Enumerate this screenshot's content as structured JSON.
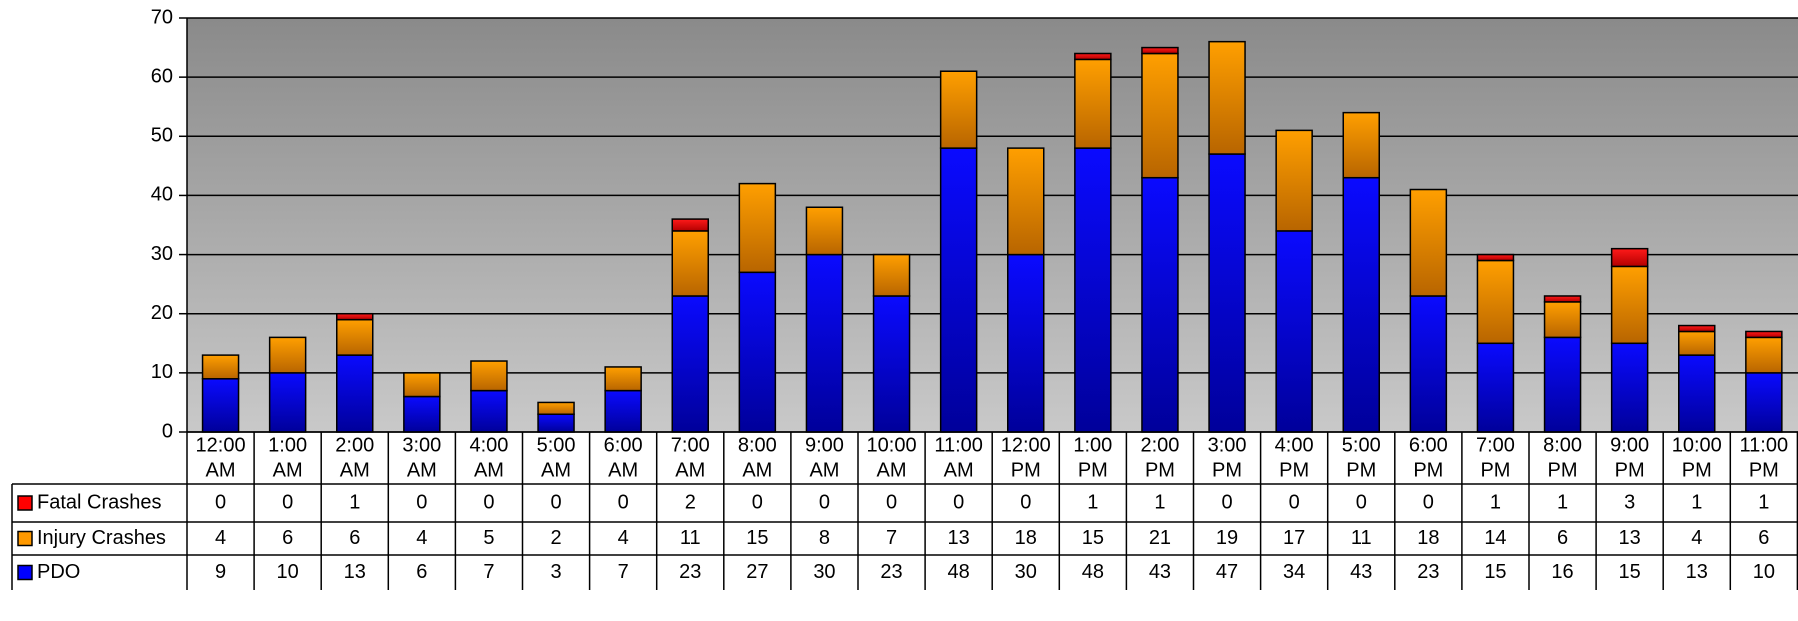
{
  "chart_data": {
    "type": "bar",
    "stacked": true,
    "categories": [
      [
        "12:00",
        "AM"
      ],
      [
        "1:00",
        "AM"
      ],
      [
        "2:00",
        "AM"
      ],
      [
        "3:00",
        "AM"
      ],
      [
        "4:00",
        "AM"
      ],
      [
        "5:00",
        "AM"
      ],
      [
        "6:00",
        "AM"
      ],
      [
        "7:00",
        "AM"
      ],
      [
        "8:00",
        "AM"
      ],
      [
        "9:00",
        "AM"
      ],
      [
        "10:00",
        "AM"
      ],
      [
        "11:00",
        "AM"
      ],
      [
        "12:00",
        "PM"
      ],
      [
        "1:00",
        "PM"
      ],
      [
        "2:00",
        "PM"
      ],
      [
        "3:00",
        "PM"
      ],
      [
        "4:00",
        "PM"
      ],
      [
        "5:00",
        "PM"
      ],
      [
        "6:00",
        "PM"
      ],
      [
        "7:00",
        "PM"
      ],
      [
        "8:00",
        "PM"
      ],
      [
        "9:00",
        "PM"
      ],
      [
        "10:00",
        "PM"
      ],
      [
        "11:00",
        "PM"
      ]
    ],
    "series": [
      {
        "name": "PDO",
        "color": "#0000ff",
        "values": [
          9,
          10,
          13,
          6,
          7,
          3,
          7,
          23,
          27,
          30,
          23,
          48,
          30,
          48,
          43,
          47,
          34,
          43,
          23,
          15,
          16,
          15,
          13,
          10
        ]
      },
      {
        "name": "Injury Crashes",
        "color": "#ff9900",
        "values": [
          4,
          6,
          6,
          4,
          5,
          2,
          4,
          11,
          15,
          8,
          7,
          13,
          18,
          15,
          21,
          19,
          17,
          11,
          18,
          14,
          6,
          13,
          4,
          6
        ]
      },
      {
        "name": "Fatal Crashes",
        "color": "#ff0000",
        "values": [
          0,
          0,
          1,
          0,
          0,
          0,
          0,
          2,
          0,
          0,
          0,
          0,
          0,
          1,
          1,
          0,
          0,
          0,
          0,
          1,
          1,
          3,
          1,
          1
        ]
      }
    ],
    "table_rows": [
      "Fatal Crashes",
      "Injury Crashes",
      "PDO"
    ],
    "ylim": [
      0,
      70
    ],
    "yticks": [
      0,
      10,
      20,
      30,
      40,
      50,
      60,
      70
    ],
    "grid": true,
    "legend": "data-table-left"
  }
}
